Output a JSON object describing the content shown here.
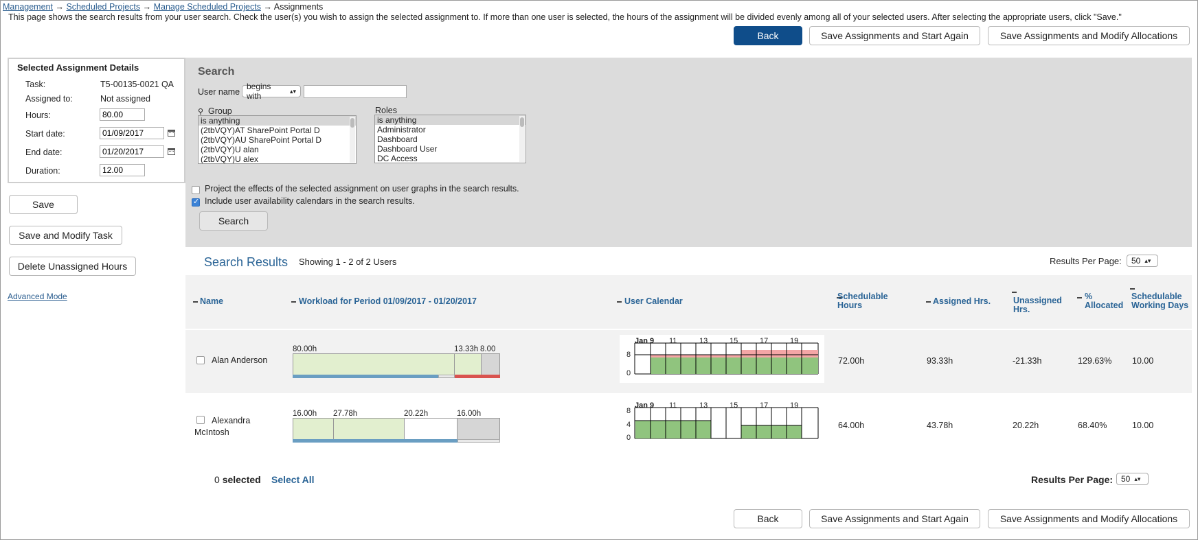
{
  "breadcrumb": {
    "items": [
      "Management",
      "Scheduled Projects",
      "Manage Scheduled Projects"
    ],
    "separator": "→",
    "current": "Assignments"
  },
  "instructions": "This page shows the search results from your user search. Check the user(s) you wish to assign the selected assignment to. If more than one user is selected, the hours of the assignment will be divided evenly among all of your selected users. After selecting the appropriate users, click \"Save.\"",
  "top_buttons": {
    "back": "Back",
    "save_start_again": "Save Assignments and Start Again",
    "save_modify_alloc": "Save Assignments and Modify Allocations"
  },
  "assignment_details": {
    "title": "Selected Assignment Details",
    "task_label": "Task:",
    "task_value": "T5-00135-0021 QA",
    "assigned_label": "Assigned to:",
    "assigned_value": "Not assigned",
    "hours_label": "Hours:",
    "hours_value": "80.00",
    "start_label": "Start date:",
    "start_value": "01/09/2017",
    "end_label": "End date:",
    "end_value": "01/20/2017",
    "duration_label": "Duration:",
    "duration_value": "12.00"
  },
  "left_buttons": {
    "save": "Save",
    "save_modify_task": "Save and Modify Task",
    "delete_unassigned": "Delete Unassigned Hours"
  },
  "advanced_mode": "Advanced Mode",
  "search": {
    "title": "Search",
    "username_label": "User name",
    "match_mode": "begins with",
    "username_value": "",
    "group_label": "Group",
    "group_options": [
      "is anything",
      "(2tbVQY)AT SharePoint Portal D",
      "(2tbVQY)AU SharePoint Portal D",
      "(2tbVQY)U alan",
      "(2tbVQY)U alex"
    ],
    "roles_label": "Roles",
    "roles_options": [
      "is anything",
      "Administrator",
      "Dashboard",
      "Dashboard User",
      "DC Access"
    ],
    "project_effects_label": "Project the effects of the selected assignment on user graphs in the search results.",
    "project_effects_checked": false,
    "include_calendars_label": "Include user availability calendars in the search results.",
    "include_calendars_checked": true,
    "search_button": "Search"
  },
  "results": {
    "title": "Search Results",
    "showing": "Showing 1 - 2 of 2 Users",
    "per_page_label": "Results Per Page:",
    "per_page_value": "50",
    "columns": {
      "name": "Name",
      "workload": "Workload for Period 01/09/2017 - 01/20/2017",
      "calendar": "User Calendar",
      "schedulable": "Schedulable Hours",
      "assigned": "Assigned Hrs.",
      "unassigned": "Unassigned Hrs.",
      "allocated": "% Allocated",
      "working_days": "Schedulable Working Days"
    },
    "calendar_ticks": [
      "Jan 9",
      "11",
      "13",
      "15",
      "17",
      "19"
    ],
    "rows": [
      {
        "name": "Alan Anderson",
        "workload_labels": [
          "80.00h",
          "13.33h",
          "8.00"
        ],
        "cal_ylabels": [
          "8",
          "0"
        ],
        "schedulable": "72.00h",
        "assigned": "93.33h",
        "unassigned": "-21.33h",
        "allocated": "129.63%",
        "working_days": "10.00"
      },
      {
        "name": "Alexandra McIntosh",
        "workload_labels": [
          "16.00h",
          "27.78h",
          "20.22h",
          "16.00h"
        ],
        "cal_ylabels": [
          "8",
          "4",
          "0"
        ],
        "schedulable": "64.00h",
        "assigned": "43.78h",
        "unassigned": "20.22h",
        "allocated": "68.40%",
        "working_days": "10.00"
      }
    ],
    "selected_count": "0",
    "selected_label": "selected",
    "select_all": "Select All"
  },
  "bottom_buttons": {
    "back": "Back",
    "save_start_again": "Save Assignments and Start Again",
    "save_modify_alloc": "Save Assignments and Modify Allocations"
  },
  "colors": {
    "primary": "#0f4d8a",
    "link": "#2a6496",
    "bar_green": "#e2efcf",
    "cal_green": "#90c47e",
    "cal_red": "#f4a6a6",
    "overalloc": "#d9534f",
    "assigned_line": "#6a9ec2"
  }
}
